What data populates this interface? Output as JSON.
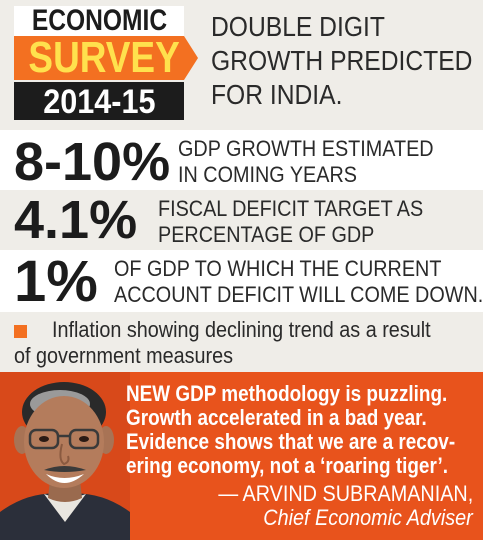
{
  "logo": {
    "line1": "ECONOMIC",
    "line2": "SURVEY",
    "line3": "2014-15"
  },
  "headline": {
    "lines": [
      "DOUBLE DIGIT",
      "GROWTH PREDICTED",
      "FOR INDIA."
    ]
  },
  "stats": [
    {
      "value": "8-10%",
      "lines": [
        "GDP GROWTH ESTIMATED",
        "IN COMING YEARS"
      ]
    },
    {
      "value": "4.1%",
      "lines": [
        "FISCAL DEFICIT TARGET AS",
        "PERCENTAGE OF GDP"
      ]
    },
    {
      "value": "1%",
      "lines": [
        "OF GDP TO WHICH THE CURRENT",
        "ACCOUNT DEFICIT WILL COME DOWN."
      ]
    }
  ],
  "note": {
    "lines": [
      "Inflation showing declining trend as a result",
      "of government measures"
    ]
  },
  "quote": {
    "lines": [
      "NEW GDP methodology is puzzling.",
      "Growth accelerated in a bad year.",
      "Evidence shows that we are a recov-",
      "ering economy, not a ‘roaring tiger’."
    ],
    "author": "— ARVIND SUBRAMANIAN,",
    "role": "Chief Economic Adviser"
  },
  "colors": {
    "accent_orange": "#f37021",
    "quote_panel": "#e8531c",
    "logo_yellow": "#ffe14d",
    "band_grey": "#efede8",
    "ink": "#1c1c1c"
  },
  "icons": {
    "portrait": "man-portrait-photo"
  }
}
